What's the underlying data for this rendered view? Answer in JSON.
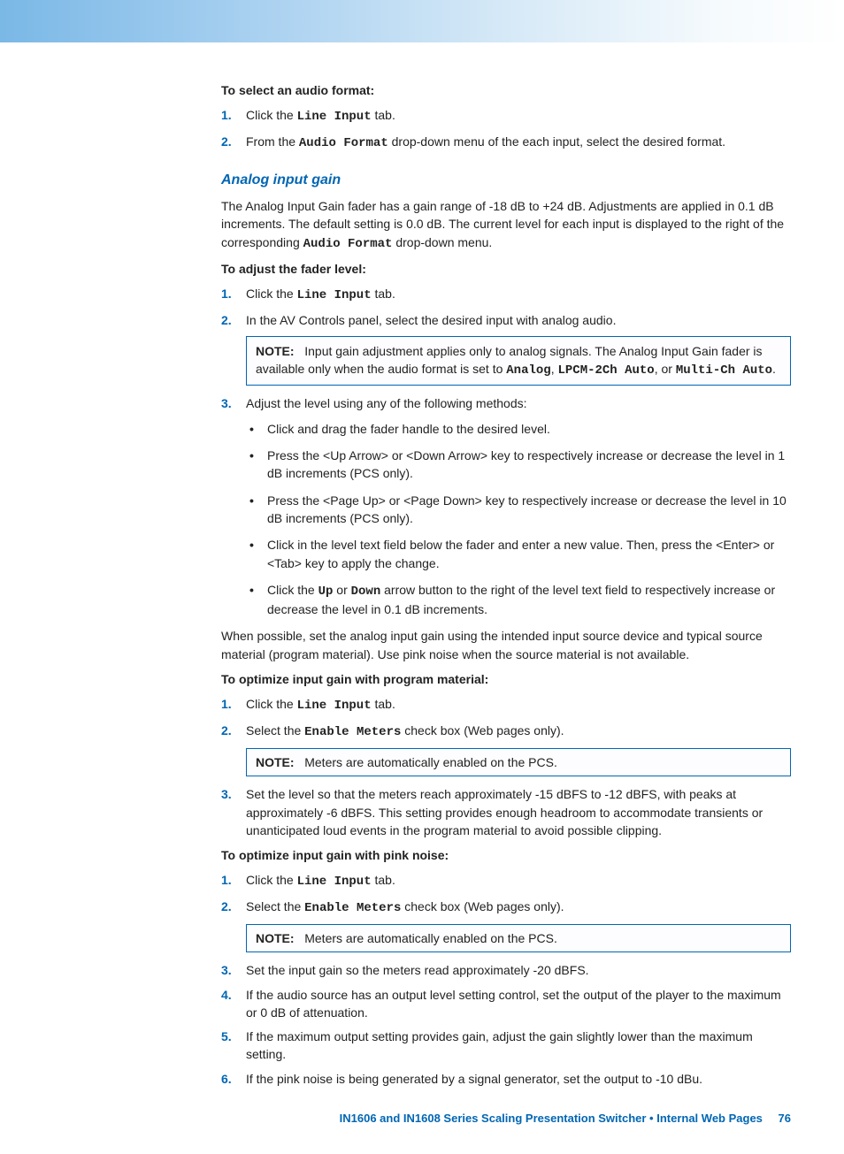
{
  "section1": {
    "heading": "To select an audio format:",
    "steps": [
      {
        "num": "1.",
        "pre": "Click the ",
        "mono": "Line Input",
        "post": " tab."
      },
      {
        "num": "2.",
        "pre": "From the ",
        "mono": "Audio Format",
        "post": " drop-down menu of the each input, select the desired format."
      }
    ]
  },
  "analog": {
    "title": "Analog input gain",
    "intro_pre": "The Analog Input Gain fader has a gain range of -18 dB to +24 dB. Adjustments are applied in 0.1 dB increments. The default setting is 0.0 dB. The current level for each input is displayed to the right of the corresponding ",
    "intro_mono": "Audio Format",
    "intro_post": " drop-down menu.",
    "adjust_heading": "To adjust the fader level:",
    "adjust_steps": {
      "s1": {
        "num": "1.",
        "pre": "Click the ",
        "mono": "Line Input",
        "post": " tab."
      },
      "s2": {
        "num": "2.",
        "text": "In the AV Controls panel, select the desired input with analog audio."
      },
      "note1": {
        "label": "NOTE:",
        "pre": "Input gain adjustment applies only to analog signals. The Analog Input Gain fader is available only when the audio format is set to ",
        "m1": "Analog",
        "c1": ", ",
        "m2": "LPCM-2Ch Auto",
        "c2": ", or ",
        "m3": "Multi-Ch Auto",
        "post": "."
      },
      "s3": {
        "num": "3.",
        "lead": "Adjust the level using any of the following methods:",
        "bullets": [
          "Click and drag the fader handle to the desired level.",
          "Press the <Up Arrow> or <Down Arrow> key to respectively increase or decrease the level in 1 dB increments (PCS only).",
          "Press the <Page Up> or <Page Down> key to respectively increase or decrease the level in 10 dB increments (PCS only).",
          "Click in the level text field below the fader and enter a new value. Then, press the <Enter> or <Tab> key to apply the change."
        ],
        "bullet5": {
          "pre": "Click the ",
          "m1": "Up",
          "mid": " or ",
          "m2": "Down",
          "post": " arrow button to the right of the level text field to respectively increase or decrease the level in 0.1 dB increments."
        }
      }
    },
    "when_possible": "When possible, set the analog input gain using the intended input source device and typical source material (program material). Use pink noise when the source material is not available.",
    "opt_program": {
      "heading": "To optimize input gain with program material:",
      "s1": {
        "num": "1.",
        "pre": "Click the ",
        "mono": "Line Input",
        "post": " tab."
      },
      "s2": {
        "num": "2.",
        "pre": "Select the ",
        "mono": "Enable Meters",
        "post": " check box (Web pages only)."
      },
      "note": {
        "label": "NOTE:",
        "text": "Meters are automatically enabled on the PCS."
      },
      "s3": {
        "num": "3.",
        "text": "Set the level so that the meters reach approximately -15 dBFS to -12 dBFS, with peaks at approximately -6 dBFS. This setting provides enough headroom to accommodate transients or unanticipated loud events in the program material to avoid possible clipping."
      }
    },
    "opt_pink": {
      "heading": "To optimize input gain with pink noise:",
      "s1": {
        "num": "1.",
        "pre": "Click the ",
        "mono": "Line Input",
        "post": " tab."
      },
      "s2": {
        "num": "2.",
        "pre": "Select the ",
        "mono": "Enable Meters",
        "post": " check box (Web pages only)."
      },
      "note": {
        "label": "NOTE:",
        "text": "Meters are automatically enabled on the PCS."
      },
      "s3": {
        "num": "3.",
        "text": "Set the input gain so the meters read approximately -20 dBFS."
      },
      "s4": {
        "num": "4.",
        "text": "If the audio source has an output level setting control, set the output of the player to the maximum or 0 dB of attenuation."
      },
      "s5": {
        "num": "5.",
        "text": "If the maximum output setting provides gain, adjust the gain slightly lower than the maximum setting."
      },
      "s6": {
        "num": "6.",
        "text": "If the pink noise is being generated by a signal generator, set the output to -10 dBu."
      }
    }
  },
  "footer": {
    "title": "IN1606 and IN1608 Series Scaling Presentation Switcher • Internal Web Pages",
    "page": "76"
  }
}
